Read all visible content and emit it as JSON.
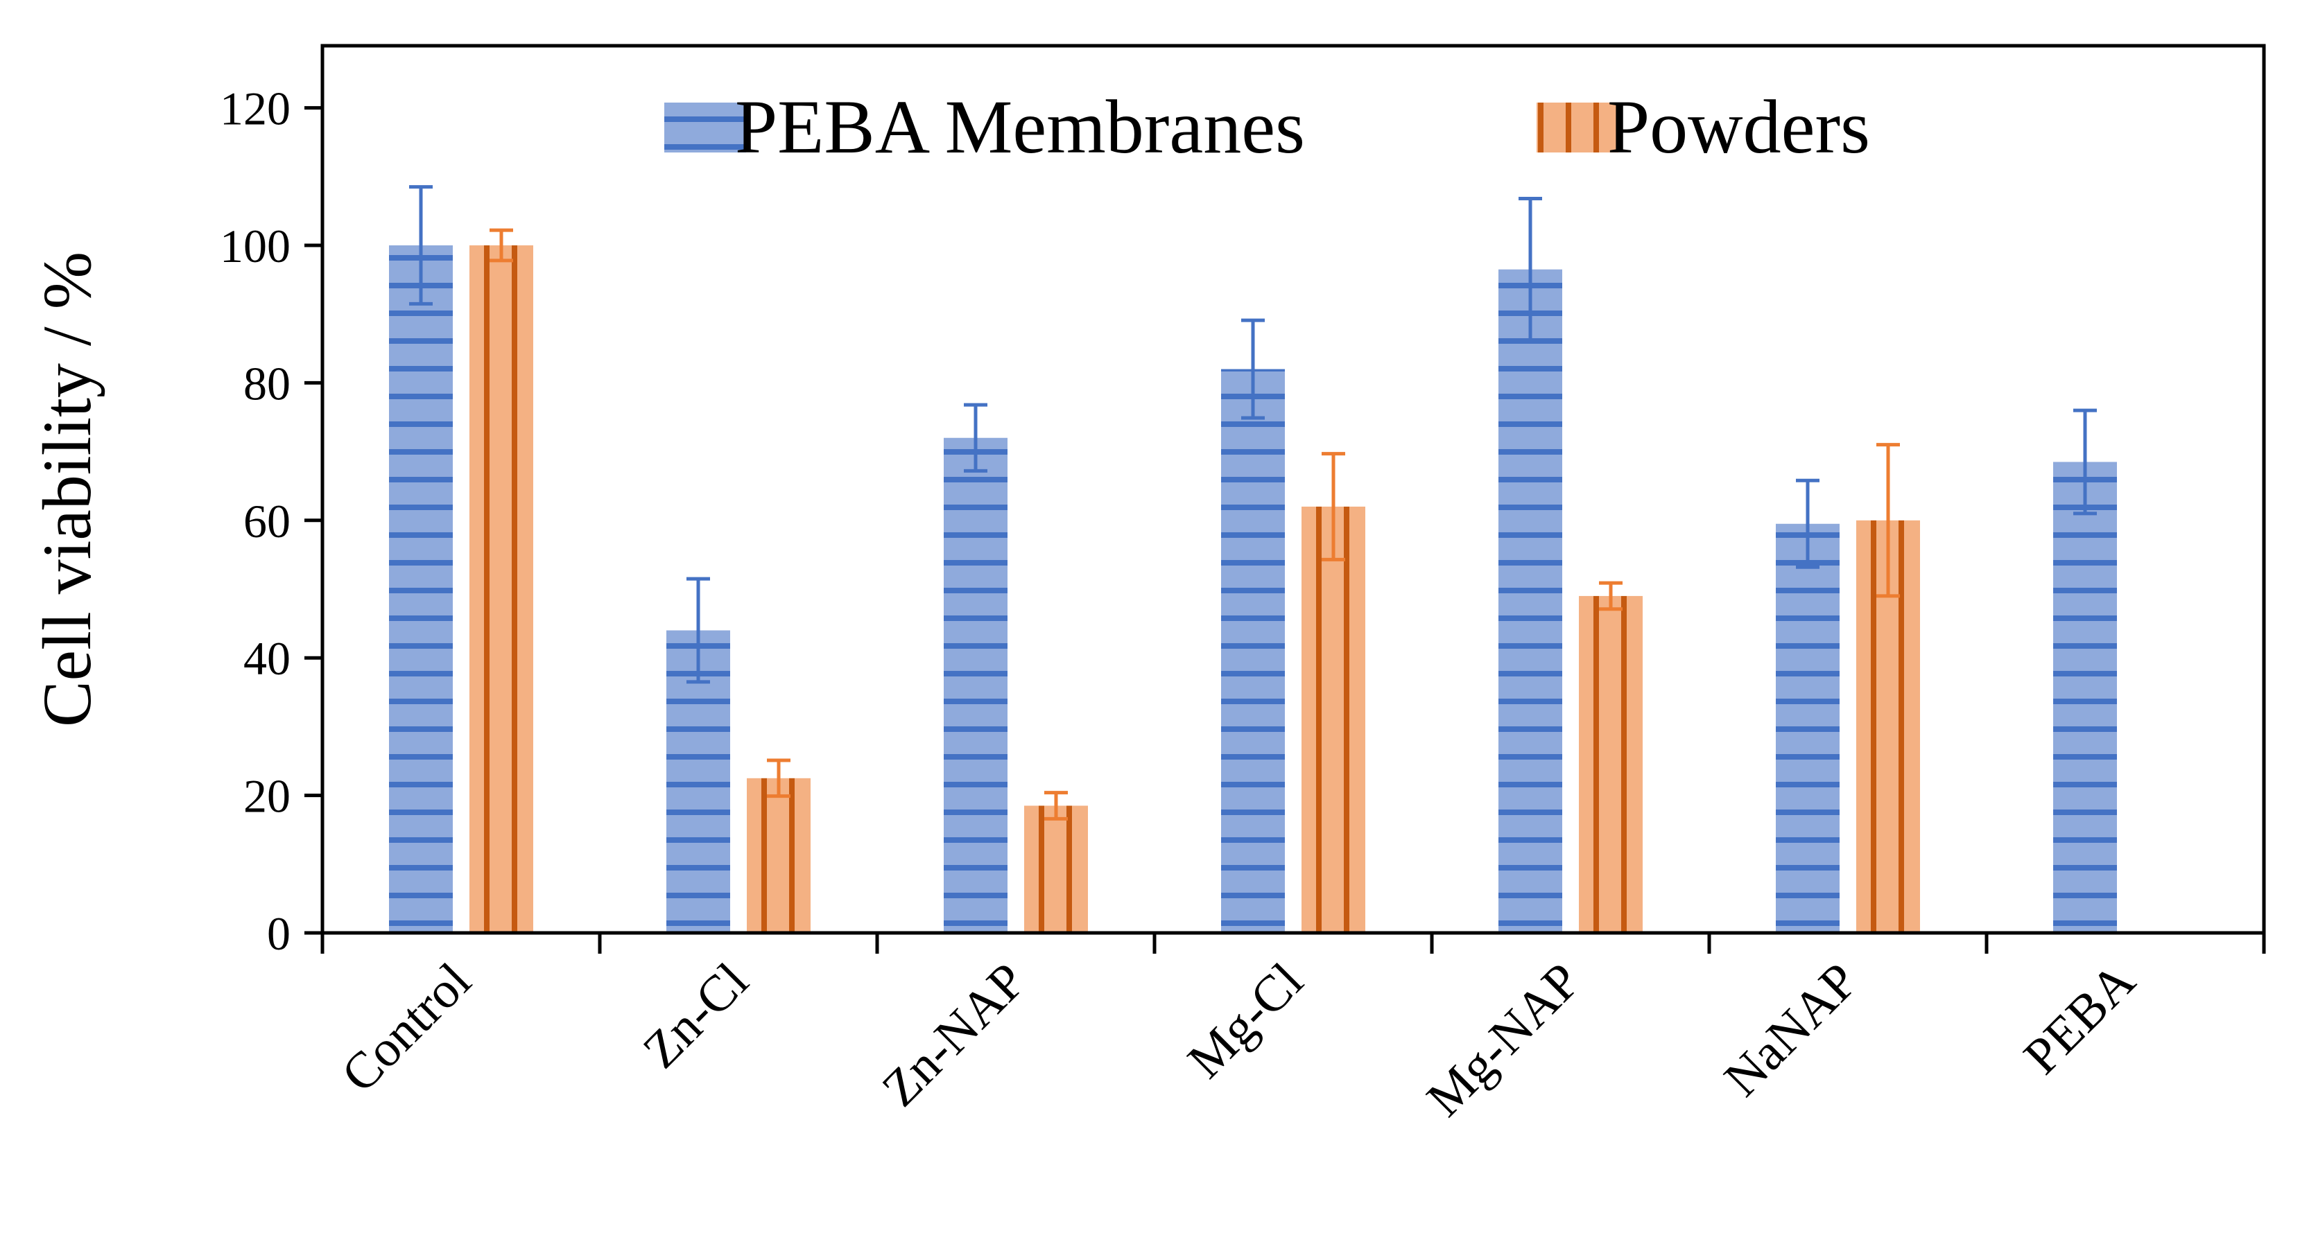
{
  "chart_data": {
    "type": "bar",
    "title": "",
    "xlabel": "",
    "ylabel": "Cell viability / %",
    "ylim": [
      0,
      130
    ],
    "yticks": [
      0,
      20,
      40,
      60,
      80,
      100,
      120
    ],
    "ytick_labels": [
      "0",
      "20",
      "40",
      "60",
      "80",
      "100",
      "120"
    ],
    "categories": [
      "Control",
      "Zn-Cl",
      "Zn-NAP",
      "Mg-Cl",
      "Mg-NAP",
      "NaNAP",
      "PEBA"
    ],
    "series": [
      {
        "name": "PEBA Membranes",
        "color": "#8FAADC",
        "stripe_color": "#4472C4",
        "error_color": "#4472C4",
        "pattern": "horizontal-stripes",
        "values": [
          100,
          44,
          72,
          82,
          96.5,
          59.5,
          68.5
        ],
        "errors": [
          8.5,
          7.5,
          4.8,
          7.1,
          10.3,
          6.3,
          7.5
        ]
      },
      {
        "name": "Powders",
        "color": "#F4B183",
        "stripe_color": "#C55A11",
        "error_color": "#ED7D31",
        "pattern": "vertical-stripes",
        "values": [
          100,
          22.5,
          18.5,
          62,
          49,
          60,
          null
        ],
        "errors": [
          2.2,
          2.6,
          1.9,
          7.7,
          1.9,
          11,
          null
        ]
      }
    ],
    "legend": {
      "position": "top-center",
      "entries": [
        "PEBA Membranes",
        "Powders"
      ]
    },
    "grid": false
  }
}
